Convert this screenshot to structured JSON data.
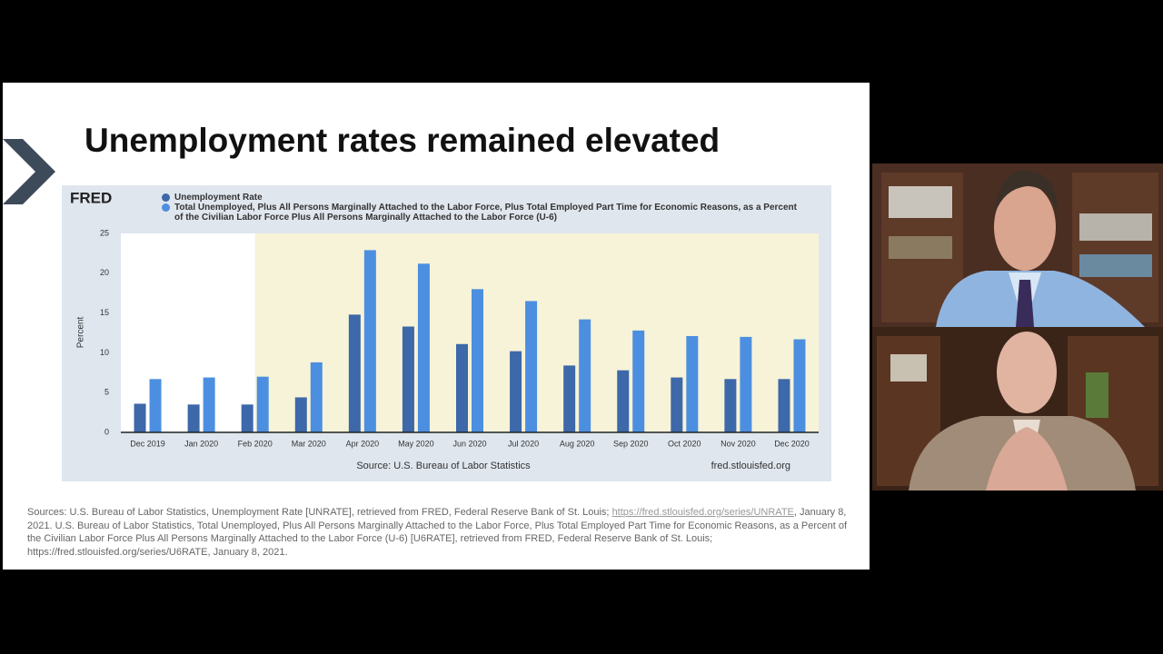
{
  "slide": {
    "title": "Unemployment rates remained elevated",
    "sources_before_link": "Sources: U.S. Bureau of Labor Statistics, Unemployment Rate [UNRATE], retrieved from FRED, Federal Reserve Bank of St. Louis; ",
    "sources_link": "https://fred.stlouisfed.org/series/UNRATE",
    "sources_after_link": ", January 8, 2021. U.S. Bureau of Labor Statistics, Total Unemployed, Plus All Persons Marginally Attached to the Labor Force, Plus Total Employed Part Time for Economic Reasons, as a Percent of the Civilian Labor Force Plus All Persons Marginally Attached to the Labor Force (U-6) [U6RATE], retrieved from FRED, Federal Reserve Bank of St. Louis; https://fred.stlouisfed.org/series/U6RATE, January 8, 2021."
  },
  "chart_data": {
    "type": "bar",
    "logo": "FRED",
    "y_label": "Percent",
    "source": "Source: U.S. Bureau of Labor Statistics",
    "site": "fred.stlouisfed.org",
    "categories": [
      "Dec 2019",
      "Jan 2020",
      "Feb 2020",
      "Mar 2020",
      "Apr 2020",
      "May 2020",
      "Jun 2020",
      "Jul 2020",
      "Aug 2020",
      "Sep 2020",
      "Oct 2020",
      "Nov 2020",
      "Dec 2020"
    ],
    "series": [
      {
        "name": "Unemployment Rate",
        "color": "#3d68a9",
        "values": [
          3.6,
          3.5,
          3.5,
          4.4,
          14.8,
          13.3,
          11.1,
          10.2,
          8.4,
          7.8,
          6.9,
          6.7,
          6.7
        ]
      },
      {
        "name": "Total Unemployed, Plus All Persons Marginally Attached to the Labor Force, Plus Total Employed Part Time for Economic Reasons, as a Percent of the Civilian Labor Force Plus All Persons Marginally Attached to the Labor Force (U-6)",
        "color": "#4c8fe0",
        "values": [
          6.7,
          6.9,
          7.0,
          8.8,
          22.9,
          21.2,
          18.0,
          16.5,
          14.2,
          12.8,
          12.1,
          12.0,
          11.7
        ]
      }
    ],
    "ylim": [
      0,
      25
    ],
    "yticks": [
      0,
      5,
      10,
      15,
      20,
      25
    ],
    "grid": false
  }
}
